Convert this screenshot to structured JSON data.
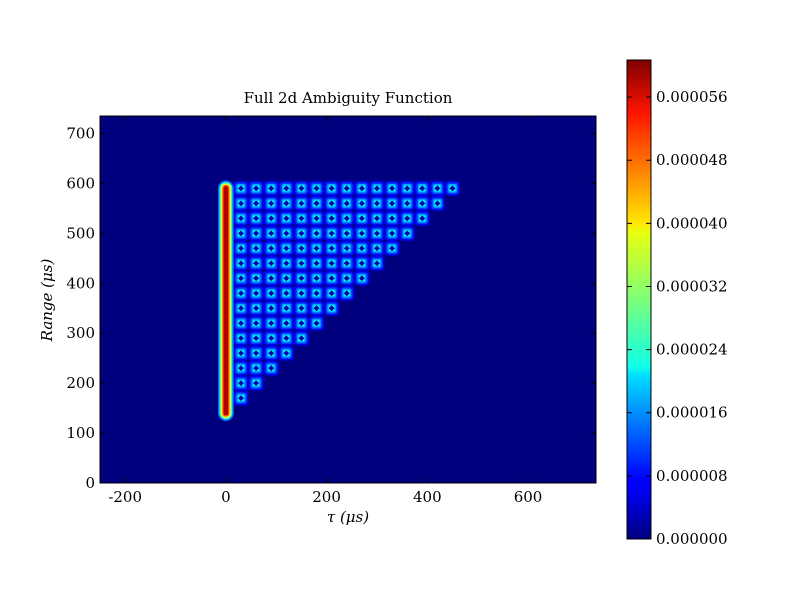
{
  "chart_data": {
    "type": "heatmap",
    "title": "Full 2d Ambiguity Function",
    "xlabel": "τ (μs)",
    "ylabel": "Range (μs)",
    "xlim": [
      -250,
      735
    ],
    "ylim": [
      0,
      735
    ],
    "xticks": [
      "-200",
      "0",
      "200",
      "400",
      "600"
    ],
    "xtick_values": [
      -200,
      0,
      200,
      400,
      600
    ],
    "yticks": [
      "0",
      "100",
      "200",
      "300",
      "400",
      "500",
      "600",
      "700"
    ],
    "ytick_values": [
      0,
      100,
      200,
      300,
      400,
      500,
      600,
      700
    ],
    "grid": false,
    "colormap": "jet",
    "colorbar": {
      "min": 0.0,
      "max": 6.07e-05,
      "tick_labels": [
        "0.000000",
        "0.000008",
        "0.000016",
        "0.000024",
        "0.000032",
        "0.000040",
        "0.000048",
        "0.000056"
      ],
      "tick_values": [
        0.0,
        8e-06,
        1.6e-05,
        2.4e-05,
        3.2e-05,
        4e-05,
        4.8e-05,
        5.6e-05
      ]
    },
    "zero_delay_ridge": {
      "tau": 0,
      "range_from": 140,
      "range_to": 590,
      "value": 6e-05
    },
    "peak_grid": {
      "tau_step": 30,
      "range_step": 30,
      "range_max": 590,
      "range_min": 170,
      "peak_value": 3.8e-05,
      "support": "0 < tau <= range - 140"
    },
    "background_value": 0.0
  }
}
